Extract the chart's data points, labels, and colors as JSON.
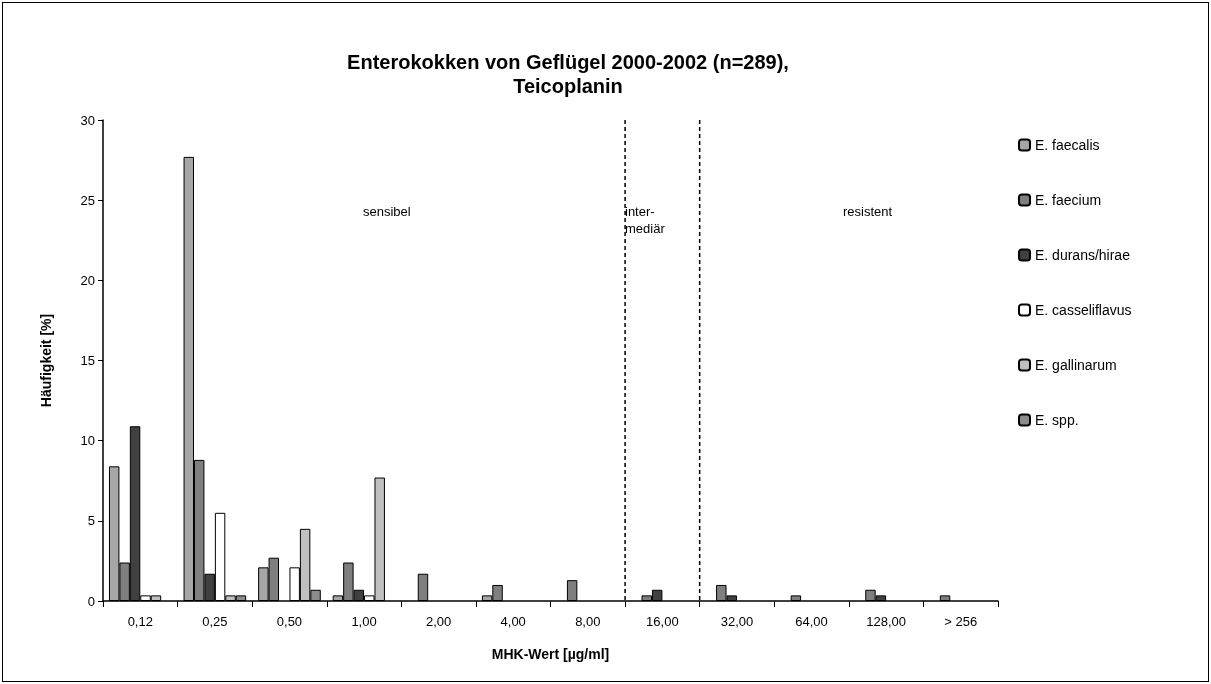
{
  "chart_data": {
    "type": "bar",
    "title": "Enterokokken von Geflügel 2000-2002 (n=289),\nTeicoplanin",
    "xlabel": "MHK-Wert [µg/ml]",
    "ylabel": "Häufigkeit [%]",
    "categories": [
      "0,12",
      "0,25",
      "0,50",
      "1,00",
      "2,00",
      "4,00",
      "8,00",
      "16,00",
      "32,00",
      "64,00",
      "128,00",
      "> 256"
    ],
    "series": [
      {
        "name": "E. faecalis",
        "color": "#a6a6a6",
        "values": [
          8.4,
          27.7,
          2.1,
          0.35,
          null,
          0.35,
          null,
          null,
          null,
          null,
          null,
          null
        ]
      },
      {
        "name": "E. faecium",
        "color": "#7f7f7f",
        "values": [
          2.4,
          8.8,
          2.7,
          2.4,
          1.7,
          1.0,
          1.3,
          0.35,
          1.0,
          0.35,
          0.7,
          0.35
        ]
      },
      {
        "name": "E. durans/hirae",
        "color": "#404040",
        "values": [
          10.9,
          1.7,
          null,
          0.7,
          null,
          null,
          null,
          0.7,
          0.35,
          null,
          0.35,
          null
        ]
      },
      {
        "name": "E. casseliflavus",
        "color": "#ffffff",
        "values": [
          0.35,
          5.5,
          2.1,
          0.35,
          null,
          null,
          null,
          null,
          null,
          null,
          null,
          null
        ]
      },
      {
        "name": "E. gallinarum",
        "color": "#c0c0c0",
        "values": [
          0.35,
          0.35,
          4.5,
          7.7,
          null,
          null,
          null,
          null,
          null,
          null,
          null,
          null
        ]
      },
      {
        "name": "E. spp.",
        "color": "#8c8c8c",
        "values": [
          null,
          0.35,
          0.7,
          null,
          null,
          null,
          null,
          null,
          null,
          null,
          null,
          null
        ]
      }
    ],
    "annotations": [
      "sensibel",
      "inter-\nmediär",
      "resistent"
    ],
    "ylim": [
      0,
      30
    ],
    "yticks": [
      0,
      5,
      10,
      15,
      20,
      25,
      30
    ],
    "grid": false,
    "legend": "right"
  }
}
